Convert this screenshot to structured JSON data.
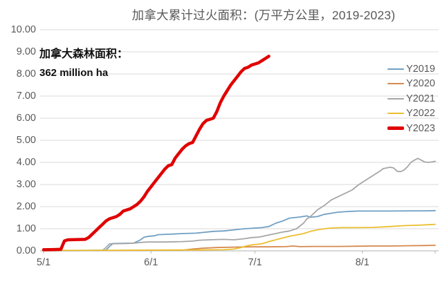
{
  "title": "加拿大累计过火面积：(万平方公里，2019-2023)",
  "annotation": {
    "line1": "加拿大森林面积：",
    "line2": "362 million ha"
  },
  "colors": {
    "title_text": "#595959",
    "axis_text": "#595959",
    "gridline": "#d9d9d9",
    "axis_line": "#bfbfbf",
    "annotation_text": "#111111"
  },
  "chart_data": {
    "type": "line",
    "title": "加拿大累计过火面积：(万平方公里，2019-2023)",
    "xlabel": "",
    "ylabel": "",
    "grid": "horizontal",
    "legend_position": "right-inside",
    "x_axis": {
      "unit": "date",
      "tick_labels": [
        "5/1",
        "6/1",
        "7/1",
        "8/1"
      ],
      "tick_days": [
        0,
        31,
        61,
        92
      ],
      "range_days": [
        0,
        113
      ]
    },
    "y_axis": {
      "min": 0,
      "max": 10,
      "step": 1,
      "tick_labels": [
        "0.00",
        "1.00",
        "2.00",
        "3.00",
        "4.00",
        "5.00",
        "6.00",
        "7.00",
        "8.00",
        "9.00",
        "10.00"
      ]
    },
    "series": [
      {
        "name": "Y2019",
        "color": "#6e9fc3",
        "width": 1.8,
        "points": [
          [
            0,
            0.02
          ],
          [
            10,
            0.02
          ],
          [
            18,
            0.03
          ],
          [
            19,
            0.2
          ],
          [
            20,
            0.33
          ],
          [
            26,
            0.35
          ],
          [
            28,
            0.5
          ],
          [
            29,
            0.62
          ],
          [
            30,
            0.65
          ],
          [
            32,
            0.68
          ],
          [
            33,
            0.73
          ],
          [
            36,
            0.75
          ],
          [
            40,
            0.78
          ],
          [
            44,
            0.8
          ],
          [
            46,
            0.83
          ],
          [
            49,
            0.88
          ],
          [
            52,
            0.9
          ],
          [
            55,
            0.95
          ],
          [
            58,
            1.0
          ],
          [
            60,
            1.02
          ],
          [
            63,
            1.05
          ],
          [
            65,
            1.1
          ],
          [
            67,
            1.25
          ],
          [
            69,
            1.35
          ],
          [
            71,
            1.48
          ],
          [
            74,
            1.53
          ],
          [
            76,
            1.58
          ],
          [
            77,
            1.52
          ],
          [
            79,
            1.55
          ],
          [
            81,
            1.65
          ],
          [
            83,
            1.7
          ],
          [
            85,
            1.75
          ],
          [
            88,
            1.78
          ],
          [
            91,
            1.8
          ],
          [
            96,
            1.8
          ],
          [
            101,
            1.8
          ],
          [
            106,
            1.81
          ],
          [
            110,
            1.81
          ],
          [
            113,
            1.82
          ]
        ]
      },
      {
        "name": "Y2020",
        "color": "#d5884c",
        "width": 1.8,
        "points": [
          [
            0,
            0.02
          ],
          [
            20,
            0.02
          ],
          [
            40,
            0.03
          ],
          [
            43,
            0.08
          ],
          [
            46,
            0.12
          ],
          [
            50,
            0.15
          ],
          [
            55,
            0.17
          ],
          [
            60,
            0.18
          ],
          [
            65,
            0.18
          ],
          [
            70,
            0.19
          ],
          [
            72,
            0.22
          ],
          [
            74,
            0.19
          ],
          [
            78,
            0.2
          ],
          [
            85,
            0.2
          ],
          [
            90,
            0.21
          ],
          [
            95,
            0.22
          ],
          [
            100,
            0.22
          ],
          [
            105,
            0.23
          ],
          [
            110,
            0.24
          ],
          [
            113,
            0.25
          ]
        ]
      },
      {
        "name": "Y2021",
        "color": "#a6a6a6",
        "width": 1.8,
        "points": [
          [
            0,
            0.0
          ],
          [
            17,
            0.02
          ],
          [
            18,
            0.15
          ],
          [
            19,
            0.32
          ],
          [
            24,
            0.33
          ],
          [
            26,
            0.35
          ],
          [
            28,
            0.38
          ],
          [
            30,
            0.4
          ],
          [
            35,
            0.4
          ],
          [
            40,
            0.42
          ],
          [
            43,
            0.44
          ],
          [
            45,
            0.48
          ],
          [
            48,
            0.5
          ],
          [
            52,
            0.52
          ],
          [
            55,
            0.5
          ],
          [
            58,
            0.55
          ],
          [
            60,
            0.6
          ],
          [
            62,
            0.62
          ],
          [
            63,
            0.65
          ],
          [
            65,
            0.72
          ],
          [
            67,
            0.78
          ],
          [
            69,
            0.85
          ],
          [
            71,
            0.9
          ],
          [
            73,
            1.0
          ],
          [
            75,
            1.25
          ],
          [
            76,
            1.45
          ],
          [
            77,
            1.55
          ],
          [
            78,
            1.7
          ],
          [
            79,
            1.85
          ],
          [
            81,
            2.05
          ],
          [
            83,
            2.3
          ],
          [
            85,
            2.45
          ],
          [
            87,
            2.6
          ],
          [
            89,
            2.75
          ],
          [
            91,
            3.0
          ],
          [
            93,
            3.2
          ],
          [
            95,
            3.4
          ],
          [
            97,
            3.6
          ],
          [
            98,
            3.72
          ],
          [
            100,
            3.78
          ],
          [
            101,
            3.75
          ],
          [
            102,
            3.6
          ],
          [
            103,
            3.58
          ],
          [
            104,
            3.65
          ],
          [
            105,
            3.8
          ],
          [
            106,
            4.0
          ],
          [
            107,
            4.1
          ],
          [
            108,
            4.18
          ],
          [
            109,
            4.1
          ],
          [
            110,
            4.02
          ],
          [
            111,
            4.0
          ],
          [
            112,
            4.02
          ],
          [
            113,
            4.05
          ]
        ]
      },
      {
        "name": "Y2022",
        "color": "#ebbe2d",
        "width": 1.8,
        "points": [
          [
            0,
            0.02
          ],
          [
            30,
            0.03
          ],
          [
            45,
            0.04
          ],
          [
            52,
            0.05
          ],
          [
            55,
            0.08
          ],
          [
            57,
            0.15
          ],
          [
            58,
            0.2
          ],
          [
            60,
            0.27
          ],
          [
            62,
            0.3
          ],
          [
            63,
            0.32
          ],
          [
            65,
            0.42
          ],
          [
            67,
            0.5
          ],
          [
            69,
            0.58
          ],
          [
            71,
            0.66
          ],
          [
            73,
            0.72
          ],
          [
            75,
            0.78
          ],
          [
            77,
            0.88
          ],
          [
            79,
            0.95
          ],
          [
            81,
            1.0
          ],
          [
            83,
            1.03
          ],
          [
            86,
            1.05
          ],
          [
            90,
            1.05
          ],
          [
            95,
            1.06
          ],
          [
            100,
            1.1
          ],
          [
            104,
            1.14
          ],
          [
            108,
            1.16
          ],
          [
            111,
            1.18
          ],
          [
            113,
            1.2
          ]
        ]
      },
      {
        "name": "Y2023",
        "color": "#e00000",
        "width": 4.5,
        "points": [
          [
            0,
            0.05
          ],
          [
            3,
            0.06
          ],
          [
            5,
            0.07
          ],
          [
            6,
            0.45
          ],
          [
            7,
            0.5
          ],
          [
            12,
            0.52
          ],
          [
            13,
            0.6
          ],
          [
            14,
            0.75
          ],
          [
            15,
            0.9
          ],
          [
            16,
            1.05
          ],
          [
            17,
            1.2
          ],
          [
            18,
            1.35
          ],
          [
            19,
            1.45
          ],
          [
            20,
            1.5
          ],
          [
            21,
            1.55
          ],
          [
            22,
            1.65
          ],
          [
            23,
            1.8
          ],
          [
            24,
            1.85
          ],
          [
            25,
            1.9
          ],
          [
            26,
            2.0
          ],
          [
            27,
            2.1
          ],
          [
            28,
            2.25
          ],
          [
            29,
            2.45
          ],
          [
            30,
            2.7
          ],
          [
            31,
            2.9
          ],
          [
            32,
            3.1
          ],
          [
            33,
            3.3
          ],
          [
            34,
            3.5
          ],
          [
            35,
            3.7
          ],
          [
            36,
            3.85
          ],
          [
            37,
            3.9
          ],
          [
            38,
            4.2
          ],
          [
            39,
            4.4
          ],
          [
            40,
            4.6
          ],
          [
            41,
            4.75
          ],
          [
            42,
            4.85
          ],
          [
            43,
            4.9
          ],
          [
            44,
            5.2
          ],
          [
            45,
            5.5
          ],
          [
            46,
            5.75
          ],
          [
            47,
            5.9
          ],
          [
            48,
            5.95
          ],
          [
            49,
            6.0
          ],
          [
            50,
            6.3
          ],
          [
            51,
            6.7
          ],
          [
            52,
            7.0
          ],
          [
            53,
            7.25
          ],
          [
            54,
            7.5
          ],
          [
            55,
            7.7
          ],
          [
            56,
            7.9
          ],
          [
            57,
            8.1
          ],
          [
            58,
            8.25
          ],
          [
            59,
            8.3
          ],
          [
            60,
            8.4
          ],
          [
            61,
            8.45
          ],
          [
            62,
            8.5
          ],
          [
            63,
            8.6
          ],
          [
            64,
            8.7
          ],
          [
            65,
            8.8
          ]
        ]
      }
    ]
  }
}
